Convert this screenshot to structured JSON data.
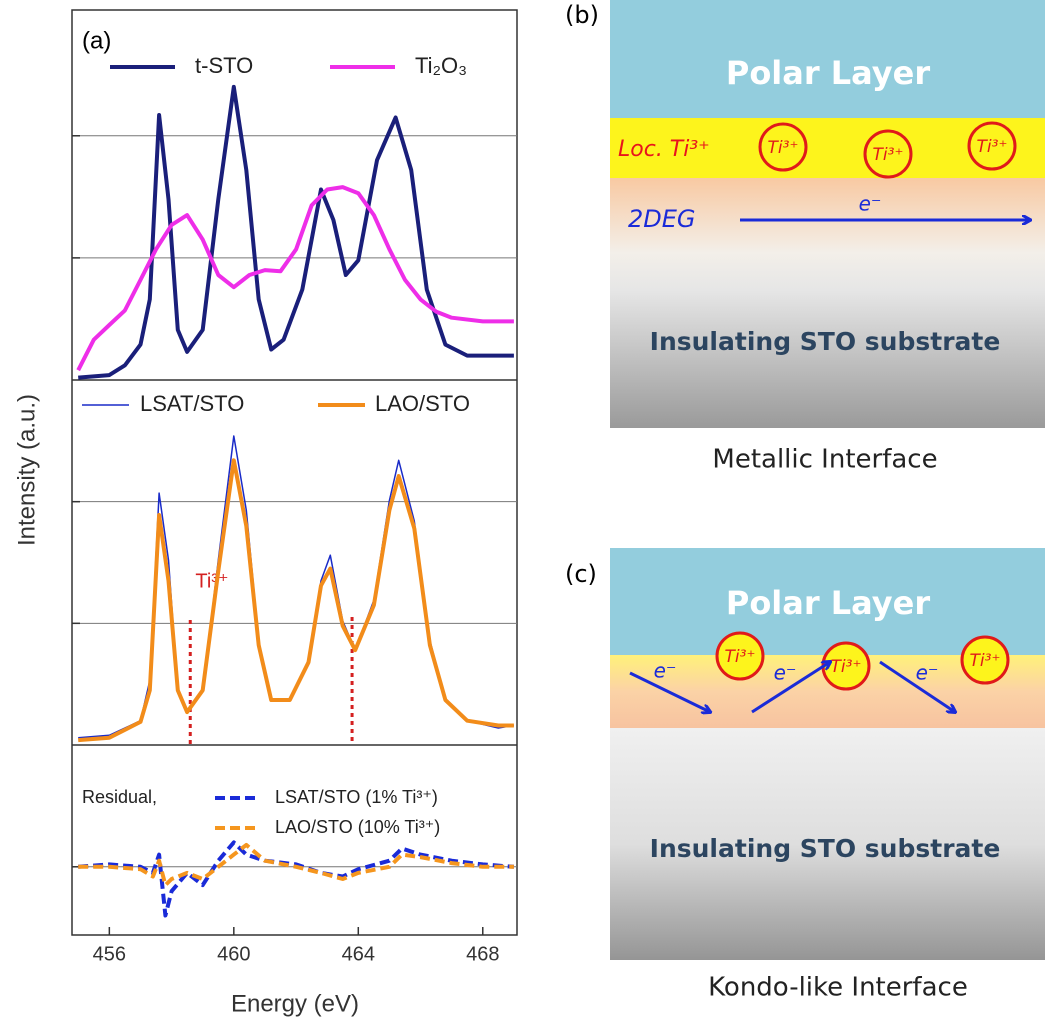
{
  "panel_a": {
    "label": "(a)",
    "ylabel": "Intensity (a.u.)",
    "xlabel": "Energy (eV)"
  },
  "chart_data": [
    {
      "type": "line",
      "xlim": [
        454.8,
        469.1
      ],
      "ylim": [
        0,
        3.03
      ],
      "yticks": [
        1,
        2
      ],
      "grid": true,
      "series": [
        {
          "name": "t-STO",
          "color": "#1a1f7a",
          "linewidth": 4,
          "x": [
            455,
            456,
            456.5,
            457,
            457.3,
            457.6,
            457.9,
            458.2,
            458.5,
            459,
            459.5,
            460,
            460.4,
            460.8,
            461.2,
            461.6,
            462.2,
            462.8,
            463.2,
            463.6,
            464,
            464.6,
            465.2,
            465.7,
            466.2,
            466.8,
            467.5,
            468.5,
            469
          ],
          "values": [
            0.02,
            0.04,
            0.12,
            0.29,
            0.66,
            2.17,
            1.48,
            0.41,
            0.23,
            0.41,
            1.48,
            2.4,
            1.72,
            0.66,
            0.25,
            0.33,
            0.74,
            1.56,
            1.31,
            0.86,
            0.98,
            1.8,
            2.15,
            1.72,
            0.74,
            0.29,
            0.2,
            0.2,
            0.2
          ]
        },
        {
          "name": "Ti₂O₃",
          "color": "#ee2ee8",
          "linewidth": 4,
          "x": [
            455,
            455.5,
            456,
            456.5,
            457,
            457.5,
            458,
            458.5,
            459,
            459.5,
            460,
            460.5,
            461,
            461.5,
            462,
            462.5,
            463,
            463.5,
            464,
            464.5,
            465,
            465.5,
            466,
            466.5,
            467,
            468,
            469
          ],
          "values": [
            0.08,
            0.33,
            0.45,
            0.57,
            0.82,
            1.07,
            1.27,
            1.35,
            1.15,
            0.86,
            0.76,
            0.86,
            0.9,
            0.89,
            1.07,
            1.43,
            1.56,
            1.58,
            1.53,
            1.35,
            1.07,
            0.82,
            0.66,
            0.56,
            0.51,
            0.48,
            0.48
          ]
        }
      ]
    },
    {
      "type": "line",
      "xlim": [
        454.8,
        469.1
      ],
      "ylim": [
        0,
        3.0
      ],
      "yticks": [
        1,
        2
      ],
      "grid": true,
      "annotation": "Ti³⁺",
      "vlines": [
        458.6,
        463.8
      ],
      "x": [
        455,
        456,
        457,
        457.3,
        457.6,
        457.9,
        458.2,
        458.5,
        459,
        459.5,
        460,
        460.4,
        460.8,
        461.2,
        461.8,
        462.4,
        462.8,
        463.1,
        463.5,
        463.9,
        464.5,
        465,
        465.3,
        465.8,
        466.3,
        466.8,
        467.5,
        468.5,
        469
      ],
      "series": [
        {
          "name": "LSAT/STO",
          "color": "#1a2bc8",
          "linewidth": 1.5,
          "values": [
            0.06,
            0.08,
            0.2,
            0.53,
            2.07,
            1.52,
            0.45,
            0.27,
            0.45,
            1.52,
            2.54,
            1.93,
            0.86,
            0.37,
            0.37,
            0.7,
            1.35,
            1.56,
            1.02,
            0.78,
            1.19,
            2.01,
            2.34,
            1.84,
            0.86,
            0.37,
            0.2,
            0.14,
            0.16
          ]
        },
        {
          "name": "LAO/STO",
          "color": "#f28c1a",
          "linewidth": 4,
          "values": [
            0.04,
            0.06,
            0.19,
            0.45,
            1.89,
            1.35,
            0.45,
            0.27,
            0.45,
            1.43,
            2.34,
            1.8,
            0.82,
            0.37,
            0.37,
            0.68,
            1.31,
            1.45,
            0.98,
            0.78,
            1.15,
            1.93,
            2.21,
            1.78,
            0.82,
            0.37,
            0.2,
            0.16,
            0.16
          ]
        }
      ]
    },
    {
      "type": "line",
      "xlim": [
        454.8,
        469.1
      ],
      "ylim": [
        -0.56,
        1.0
      ],
      "yticks": [
        0
      ],
      "grid": true,
      "xticks": [
        456,
        460,
        464,
        468
      ],
      "legend_title": "Residual,",
      "x": [
        455,
        456,
        457,
        457.4,
        457.6,
        457.8,
        458,
        458.5,
        459,
        459.5,
        460,
        460.4,
        461,
        462,
        462.8,
        463.5,
        464,
        465,
        465.4,
        466,
        467,
        468,
        469
      ],
      "series": [
        {
          "name": "LSAT/STO (1% Ti³⁺)",
          "color": "#1a2bd8",
          "linewidth": 4,
          "dash": true,
          "values": [
            0,
            0.02,
            0,
            -0.05,
            0.1,
            -0.4,
            -0.2,
            -0.05,
            -0.15,
            0.05,
            0.2,
            0.1,
            0.05,
            0.02,
            -0.05,
            -0.08,
            -0.02,
            0.05,
            0.15,
            0.1,
            0.05,
            0.02,
            0
          ]
        },
        {
          "name": "LAO/STO  (10% Ti³⁺)",
          "color": "#f5961e",
          "linewidth": 4,
          "dash": true,
          "values": [
            0,
            0,
            -0.02,
            -0.08,
            0.05,
            -0.15,
            -0.1,
            -0.05,
            -0.1,
            0,
            0.1,
            0.18,
            0.05,
            0,
            -0.05,
            -0.1,
            -0.05,
            0,
            0.1,
            0.08,
            0.03,
            0,
            0
          ]
        }
      ]
    }
  ],
  "diagrams": [
    {
      "label": "(b)",
      "polar": "Polar Layer",
      "loc": "Loc. Ti³⁺",
      "ions": [
        "Ti³⁺",
        "Ti³⁺",
        "Ti³⁺"
      ],
      "carrier": "2DEG",
      "electrons": [
        "e⁻"
      ],
      "substrate": "Insulating STO substrate",
      "caption": "Metallic Interface"
    },
    {
      "label": "(c)",
      "polar": "Polar Layer",
      "ions": [
        "Ti³⁺",
        "Ti³⁺",
        "Ti³⁺"
      ],
      "electrons": [
        "e⁻",
        "e⁻",
        "e⁻"
      ],
      "substrate": "Insulating STO substrate",
      "caption": "Kondo-like Interface"
    }
  ]
}
